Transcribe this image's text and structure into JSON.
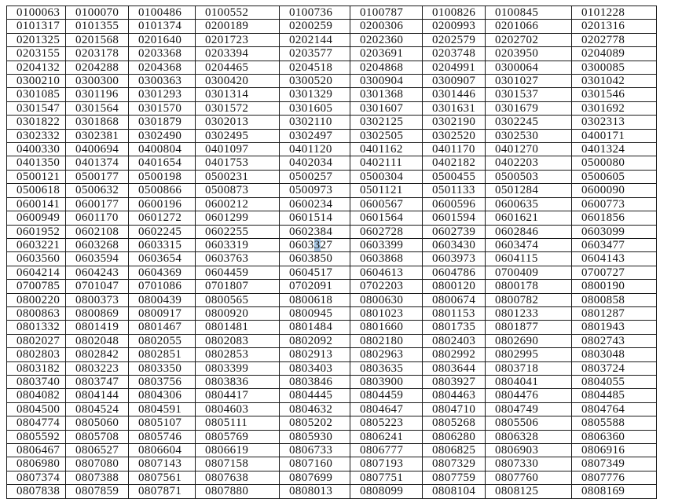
{
  "page": {
    "background_color": "#ffffff"
  },
  "table": {
    "border_color": "#1a1a1a",
    "text_color": "#121212",
    "columns": 9,
    "row_count": 36,
    "rows": [
      [
        "0100063",
        "0100070",
        "0100486",
        "0100552",
        "0100736",
        "0100787",
        "0100826",
        "0100845",
        "0101228"
      ],
      [
        "0101317",
        "0101355",
        "0101374",
        "0200189",
        "0200259",
        "0200306",
        "0200993",
        "0201066",
        "0201316"
      ],
      [
        "0201325",
        "0201568",
        "0201640",
        "0201723",
        "0202144",
        "0202360",
        "0202579",
        "0202702",
        "0202778"
      ],
      [
        "0203155",
        "0203178",
        "0203368",
        "0203394",
        "0203577",
        "0203691",
        "0203748",
        "0203950",
        "0204089"
      ],
      [
        "0204132",
        "0204288",
        "0204368",
        "0204465",
        "0204518",
        "0204868",
        "0204991",
        "0300064",
        "0300085"
      ],
      [
        "0300210",
        "0300300",
        "0300363",
        "0300420",
        "0300520",
        "0300904",
        "0300907",
        "0301027",
        "0301042"
      ],
      [
        "0301085",
        "0301196",
        "0301293",
        "0301314",
        "0301329",
        "0301368",
        "0301446",
        "0301537",
        "0301546"
      ],
      [
        "0301547",
        "0301564",
        "0301570",
        "0301572",
        "0301605",
        "0301607",
        "0301631",
        "0301679",
        "0301692"
      ],
      [
        "0301822",
        "0301868",
        "0301879",
        "0302013",
        "0302110",
        "0302125",
        "0302190",
        "0302245",
        "0302313"
      ],
      [
        "0302332",
        "0302381",
        "0302490",
        "0302495",
        "0302497",
        "0302505",
        "0302520",
        "0302530",
        "0400171"
      ],
      [
        "0400330",
        "0400694",
        "0400804",
        "0401097",
        "0401120",
        "0401162",
        "0401170",
        "0401270",
        "0401324"
      ],
      [
        "0401350",
        "0401374",
        "0401654",
        "0401753",
        "0402034",
        "0402111",
        "0402182",
        "0402203",
        "0500080"
      ],
      [
        "0500121",
        "0500177",
        "0500198",
        "0500231",
        "0500257",
        "0500304",
        "0500455",
        "0500503",
        "0500605"
      ],
      [
        "0500618",
        "0500632",
        "0500866",
        "0500873",
        "0500973",
        "0501121",
        "0501133",
        "0501284",
        "0600090"
      ],
      [
        "0600141",
        "0600177",
        "0600196",
        "0600212",
        "0600234",
        "0600567",
        "0600596",
        "0600635",
        "0600773"
      ],
      [
        "0600949",
        "0601170",
        "0601272",
        "0601299",
        "0601514",
        "0601564",
        "0601594",
        "0601621",
        "0601856"
      ],
      [
        "0601952",
        "0602108",
        "0602245",
        "0602255",
        "0602384",
        "0602728",
        "0602739",
        "0602846",
        "0603099"
      ],
      [
        "0603221",
        "0603268",
        "0603315",
        "0603319",
        "0603327",
        "0603399",
        "0603430",
        "0603474",
        "0603477"
      ],
      [
        "0603560",
        "0603594",
        "0603654",
        "0603763",
        "0603850",
        "0603868",
        "0603973",
        "0604115",
        "0604143"
      ],
      [
        "0604214",
        "0604243",
        "0604369",
        "0604459",
        "0604517",
        "0604613",
        "0604786",
        "0700409",
        "0700727"
      ],
      [
        "0700785",
        "0701047",
        "0701086",
        "0701807",
        "0702091",
        "0702203",
        "0800120",
        "0800178",
        "0800190"
      ],
      [
        "0800220",
        "0800373",
        "0800439",
        "0800565",
        "0800618",
        "0800630",
        "0800674",
        "0800782",
        "0800858"
      ],
      [
        "0800863",
        "0800869",
        "0800917",
        "0800920",
        "0800945",
        "0801023",
        "0801153",
        "0801233",
        "0801287"
      ],
      [
        "0801332",
        "0801419",
        "0801467",
        "0801481",
        "0801484",
        "0801660",
        "0801735",
        "0801877",
        "0801943"
      ],
      [
        "0802027",
        "0802048",
        "0802055",
        "0802083",
        "0802092",
        "0802180",
        "0802403",
        "0802690",
        "0802743"
      ],
      [
        "0802803",
        "0802842",
        "0802851",
        "0802853",
        "0802913",
        "0802963",
        "0802992",
        "0802995",
        "0803048"
      ],
      [
        "0803182",
        "0803223",
        "0803350",
        "0803399",
        "0803403",
        "0803635",
        "0803644",
        "0803718",
        "0803724"
      ],
      [
        "0803740",
        "0803747",
        "0803756",
        "0803836",
        "0803846",
        "0803900",
        "0803927",
        "0804041",
        "0804055"
      ],
      [
        "0804082",
        "0804144",
        "0804306",
        "0804417",
        "0804445",
        "0804459",
        "0804463",
        "0804476",
        "0804485"
      ],
      [
        "0804500",
        "0804524",
        "0804591",
        "0804603",
        "0804632",
        "0804647",
        "0804710",
        "0804749",
        "0804764"
      ],
      [
        "0804774",
        "0805060",
        "0805107",
        "0805111",
        "0805202",
        "0805223",
        "0805268",
        "0805506",
        "0805588"
      ],
      [
        "0805592",
        "0805708",
        "0805746",
        "0805769",
        "0805930",
        "0806241",
        "0806280",
        "0806328",
        "0806360"
      ],
      [
        "0806467",
        "0806527",
        "0806604",
        "0806619",
        "0806733",
        "0806777",
        "0806825",
        "0806903",
        "0806916"
      ],
      [
        "0806980",
        "0807080",
        "0807143",
        "0807158",
        "0807160",
        "0807193",
        "0807329",
        "0807330",
        "0807349"
      ],
      [
        "0807374",
        "0807388",
        "0807561",
        "0807638",
        "0807699",
        "0807751",
        "0807759",
        "0807760",
        "0807776"
      ],
      [
        "0807838",
        "0807859",
        "0807871",
        "0807880",
        "0808013",
        "0808099",
        "0808104",
        "0808125",
        "0808169"
      ]
    ]
  },
  "highlight": {
    "description": "text-selection highlight on one digit of cell 0603327",
    "row_index": 17,
    "col_index": 4,
    "char_index": 4,
    "color": "#a6c5e3"
  }
}
